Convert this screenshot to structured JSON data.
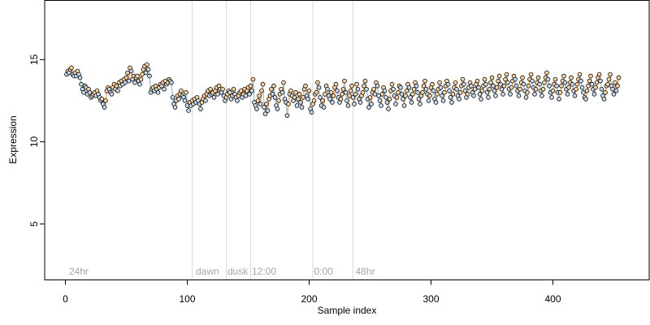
{
  "chart_data": {
    "type": "scatter",
    "xlabel": "Sample index",
    "ylabel": "Expression",
    "xlim": [
      -17,
      479
    ],
    "ylim": [
      1.6,
      18.6
    ],
    "x_ticks": [
      0,
      100,
      200,
      300,
      400
    ],
    "y_ticks": [
      5,
      10,
      15
    ],
    "grid": false,
    "legend": "none",
    "colors": {
      "point_default": "#c6dbef",
      "point_warm": "#fdd49e",
      "segment_blue": "#9ecae1",
      "segment_orange": "#fdae6b",
      "vline": "#d9d9d9",
      "annotation": "#a6a6a6"
    },
    "vlines": [
      104,
      132,
      152,
      203,
      236
    ],
    "annotations": [
      {
        "x": 3,
        "text": "24hr"
      },
      {
        "x": 107,
        "text": "dawn"
      },
      {
        "x": 133,
        "text": "dusk"
      },
      {
        "x": 153,
        "text": "12:00"
      },
      {
        "x": 204,
        "text": "0:00"
      },
      {
        "x": 238,
        "text": "48hr"
      }
    ],
    "series": [
      {
        "x_start": 1,
        "values": [
          14.1,
          14.3,
          14.2,
          14.4,
          14.5,
          14.1,
          14.0,
          14.2,
          14.0,
          14.3,
          14.1,
          13.9,
          13.5,
          13.2,
          13.0,
          13.4,
          13.3,
          12.9,
          13.2,
          13.0,
          12.7,
          12.8,
          12.9,
          13.0,
          12.8,
          13.1,
          12.9,
          12.7,
          12.5,
          12.6,
          12.3,
          12.1,
          12.5,
          13.1,
          13.3,
          13.2,
          13.0,
          12.9,
          13.3,
          13.5,
          13.2,
          13.4,
          13.1,
          13.6,
          13.4,
          13.7,
          13.5,
          13.8,
          13.6,
          13.9,
          14.2,
          13.7,
          14.5,
          14.3,
          13.8,
          14.0,
          13.6,
          13.9,
          14.0,
          13.7,
          13.5,
          13.8,
          14.1,
          14.4,
          14.6,
          14.2,
          14.7,
          14.4,
          14.0,
          13.0,
          13.2,
          13.3,
          13.1,
          13.4,
          13.2,
          13.0,
          13.3,
          13.5,
          13.4,
          13.6,
          13.2,
          13.7,
          13.5,
          13.6,
          13.8,
          13.7,
          13.6,
          12.7,
          12.3,
          12.1,
          12.5,
          12.8,
          12.6,
          12.9,
          13.1,
          12.8,
          12.7,
          12.5,
          13.0,
          12.2,
          11.9,
          12.4,
          12.2,
          12.5,
          12.3,
          12.6,
          12.4,
          12.7,
          12.5,
          12.3,
          12.0,
          12.4,
          12.6,
          12.8,
          12.5,
          12.9,
          13.1,
          12.8,
          13.2,
          12.9,
          13.0,
          12.7,
          13.1,
          13.3,
          12.9,
          13.4,
          13.2,
          13.0,
          13.2,
          12.8,
          12.5,
          12.7,
          12.9,
          13.1,
          13.0,
          12.6,
          12.8,
          13.2,
          12.9,
          12.7,
          12.5,
          12.8,
          13.0,
          13.1,
          12.7,
          12.9,
          13.2,
          12.8,
          13.1,
          13.3,
          12.9,
          13.4,
          13.1,
          13.8,
          12.4,
          12.2,
          12.0,
          12.5,
          12.8,
          12.3,
          13.1,
          13.5,
          12.1,
          11.7,
          12.3,
          11.9,
          12.6,
          12.8,
          13.2,
          12.9,
          13.4,
          12.7,
          12.2,
          12.0,
          12.5,
          12.9,
          13.2,
          13.0,
          13.6,
          12.6,
          12.4,
          11.6,
          12.3,
          12.9,
          13.1,
          12.8,
          12.5,
          12.7,
          13.0,
          12.2,
          12.6,
          12.9,
          12.4,
          12.1,
          12.7,
          13.2,
          13.4,
          12.8,
          12.6,
          13.1,
          12.0,
          11.8,
          12.3,
          12.5,
          12.9,
          13.0,
          13.6,
          13.3,
          12.7,
          12.2,
          12.5,
          12.1,
          12.9,
          13.4,
          13.2,
          12.8,
          12.6,
          13.0,
          12.4,
          12.8,
          13.3,
          13.5,
          13.1,
          12.7,
          12.4,
          12.6,
          12.9,
          13.2,
          13.7,
          13.0,
          12.5,
          12.2,
          12.8,
          13.1,
          13.4,
          12.7,
          12.3,
          12.9,
          13.5,
          13.2,
          12.6,
          12.4,
          12.8,
          13.0,
          13.4,
          13.7,
          13.2,
          12.6,
          12.1,
          12.7,
          12.3,
          13.0,
          13.2,
          12.9,
          13.6,
          13.4,
          12.8,
          12.5,
          12.2,
          12.9,
          13.3,
          13.1,
          12.7,
          12.4,
          12.0,
          12.6,
          13.1,
          13.5,
          13.2,
          12.8,
          12.3,
          12.7,
          13.0,
          13.4,
          13.3,
          12.9,
          12.6,
          12.2,
          12.8,
          13.1,
          13.5,
          13.3,
          12.7,
          12.4,
          12.9,
          13.2,
          13.6,
          13.4,
          13.0,
          12.6,
          12.3,
          12.8,
          13.0,
          13.4,
          13.7,
          13.2,
          12.9,
          12.5,
          12.8,
          13.3,
          13.5,
          13.1,
          12.6,
          12.4,
          12.9,
          13.2,
          13.6,
          13.3,
          12.8,
          12.5,
          13.0,
          13.4,
          13.7,
          13.5,
          13.1,
          12.7,
          12.4,
          12.9,
          13.3,
          13.6,
          13.2,
          12.8,
          12.6,
          13.0,
          13.4,
          13.8,
          13.5,
          13.1,
          12.7,
          12.9,
          13.3,
          13.6,
          13.4,
          13.0,
          12.8,
          13.2,
          13.5,
          13.7,
          13.3,
          12.9,
          12.6,
          13.1,
          13.4,
          13.8,
          13.5,
          13.0,
          12.7,
          13.2,
          13.6,
          13.9,
          13.4,
          13.1,
          12.8,
          13.3,
          13.7,
          14.0,
          13.5,
          13.2,
          12.9,
          13.4,
          13.8,
          14.1,
          13.6,
          13.2,
          12.9,
          13.3,
          13.7,
          14.0,
          13.8,
          13.4,
          13.1,
          12.8,
          13.2,
          13.6,
          13.9,
          13.5,
          13.1,
          12.7,
          13.0,
          13.4,
          13.8,
          14.1,
          13.7,
          13.3,
          12.9,
          13.2,
          13.6,
          13.9,
          13.5,
          13.1,
          12.8,
          13.2,
          13.6,
          13.9,
          14.2,
          13.8,
          13.4,
          13.0,
          12.7,
          13.1,
          13.5,
          13.8,
          13.4,
          13.0,
          12.6,
          13.0,
          13.4,
          13.7,
          14.0,
          13.6,
          13.2,
          12.9,
          13.3,
          13.6,
          13.9,
          13.5,
          13.1,
          12.8,
          13.2,
          13.5,
          13.8,
          14.1,
          13.7,
          13.3,
          13.0,
          12.7,
          12.6,
          13.1,
          13.4,
          13.7,
          14.0,
          13.5,
          13.2,
          12.9,
          13.3,
          13.6,
          13.9,
          14.1,
          13.7,
          13.2,
          12.8,
          12.6,
          13.0,
          13.4,
          13.5,
          13.8,
          14.1,
          13.4,
          13.2,
          12.9,
          13.6,
          13.1,
          13.4,
          13.9
        ]
      }
    ]
  }
}
